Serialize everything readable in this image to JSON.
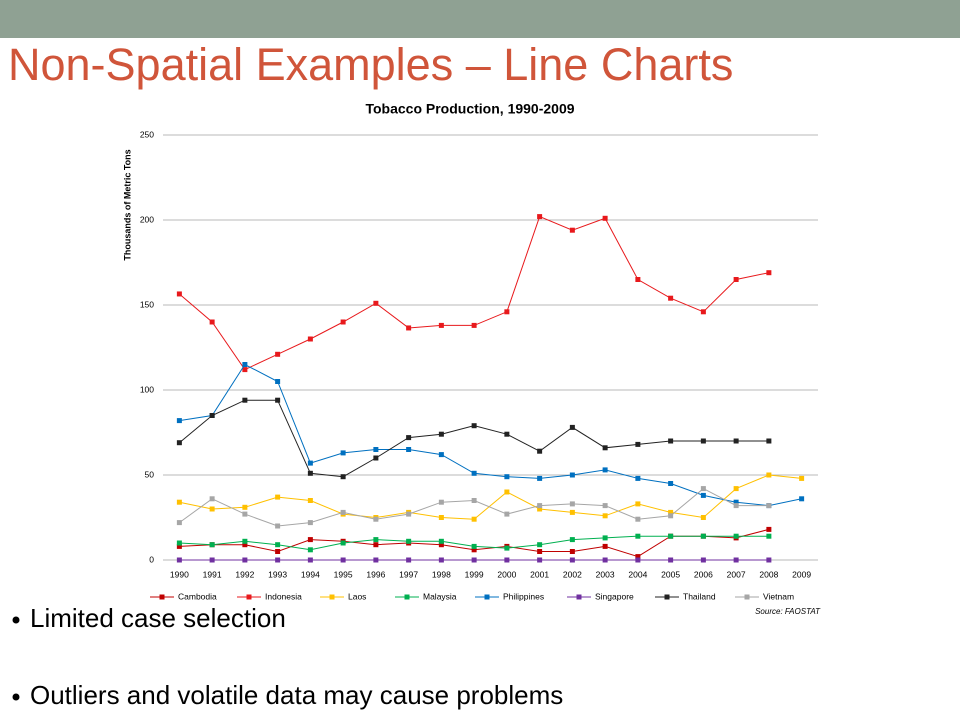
{
  "slide": {
    "title": "Non-Spatial Examples – Line Charts",
    "bullets": [
      "Limited case selection",
      "Outliers and volatile data may cause problems"
    ]
  },
  "chart_data": {
    "type": "line",
    "title": "Tobacco Production, 1990-2009",
    "y_label": "Thousands of Metric Tons",
    "source": "Source: FAOSTAT",
    "categories": [
      "1990",
      "1991",
      "1992",
      "1993",
      "1994",
      "1995",
      "1996",
      "1997",
      "1998",
      "1999",
      "2000",
      "2001",
      "2002",
      "2003",
      "2004",
      "2005",
      "2006",
      "2007",
      "2008",
      "2009"
    ],
    "ylim": [
      0,
      250
    ],
    "yticks": [
      0,
      50,
      100,
      150,
      200,
      250
    ],
    "grid": true,
    "legend": "bottom",
    "series": [
      {
        "name": "Cambodia",
        "color": "#c00000",
        "values": [
          8,
          9,
          9,
          5,
          12,
          11,
          9,
          10,
          9,
          6,
          8,
          5,
          5,
          8,
          2,
          14,
          14,
          13,
          18,
          null
        ]
      },
      {
        "name": "Indonesia",
        "color": "#e8191c",
        "values": [
          156.5,
          140,
          112,
          121,
          130,
          140,
          151,
          136.5,
          138,
          138,
          146,
          202,
          194,
          201,
          165,
          154,
          146,
          165,
          169,
          null
        ]
      },
      {
        "name": "Laos",
        "color": "#ffc000",
        "values": [
          34,
          30,
          31,
          37,
          35,
          27,
          25,
          28,
          25,
          24,
          40,
          30,
          28,
          26,
          33,
          28,
          25,
          42,
          50,
          48
        ]
      },
      {
        "name": "Malaysia",
        "color": "#00b050",
        "values": [
          10,
          9,
          11,
          9,
          6,
          10,
          12,
          11,
          11,
          8,
          7,
          9,
          12,
          13,
          14,
          14,
          14,
          14,
          14,
          null
        ]
      },
      {
        "name": "Philippines",
        "color": "#0070c0",
        "values": [
          82,
          85,
          115,
          105,
          57,
          63,
          65,
          65,
          62,
          51,
          49,
          48,
          50,
          53,
          48,
          45,
          38,
          34,
          32,
          36
        ]
      },
      {
        "name": "Singapore",
        "color": "#7030a0",
        "values": [
          0,
          0,
          0,
          0,
          0,
          0,
          0,
          0,
          0,
          0,
          0,
          0,
          0,
          0,
          0,
          0,
          0,
          0,
          0,
          null
        ]
      },
      {
        "name": "Thailand",
        "color": "#222222",
        "values": [
          69,
          85,
          94,
          94,
          51,
          49,
          60,
          72,
          74,
          79,
          74,
          64,
          78,
          66,
          68,
          70,
          70,
          70,
          70,
          null
        ]
      },
      {
        "name": "Vietnam",
        "color": "#a6a6a6",
        "values": [
          22,
          36,
          27,
          20,
          22,
          28,
          24,
          27,
          34,
          35,
          27,
          32,
          33,
          32,
          24,
          26,
          42,
          32,
          32,
          null
        ]
      }
    ]
  }
}
